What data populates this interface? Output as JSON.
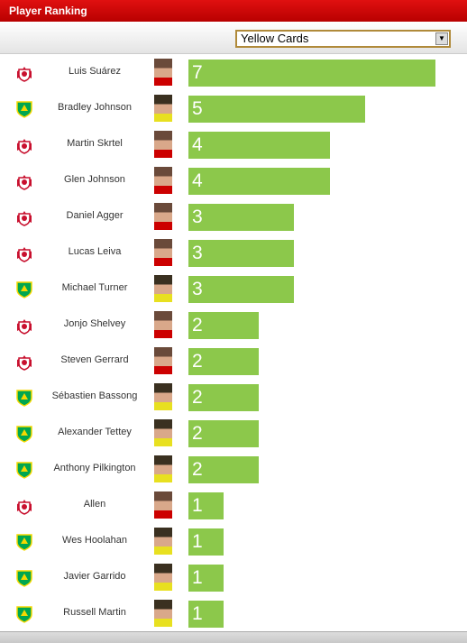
{
  "header": {
    "title": "Player Ranking"
  },
  "dropdown": {
    "selected": "Yellow Cards"
  },
  "players": [
    {
      "name": "Luis Suárez",
      "value": 7
    },
    {
      "name": "Bradley Johnson",
      "value": 5
    },
    {
      "name": "Martin Skrtel",
      "value": 4
    },
    {
      "name": "Glen Johnson",
      "value": 4
    },
    {
      "name": "Daniel Agger",
      "value": 3
    },
    {
      "name": "Lucas Leiva",
      "value": 3
    },
    {
      "name": "Michael Turner",
      "value": 3
    },
    {
      "name": "Jonjo Shelvey",
      "value": 2
    },
    {
      "name": "Steven Gerrard",
      "value": 2
    },
    {
      "name": "Sébastien Bassong",
      "value": 2
    },
    {
      "name": "Alexander Tettey",
      "value": 2
    },
    {
      "name": "Anthony Pilkington",
      "value": 2
    },
    {
      "name": "Allen",
      "value": 1
    },
    {
      "name": "Wes Hoolahan",
      "value": 1
    },
    {
      "name": "Javier Garrido",
      "value": 1
    },
    {
      "name": "Russell Martin",
      "value": 1
    }
  ]
}
